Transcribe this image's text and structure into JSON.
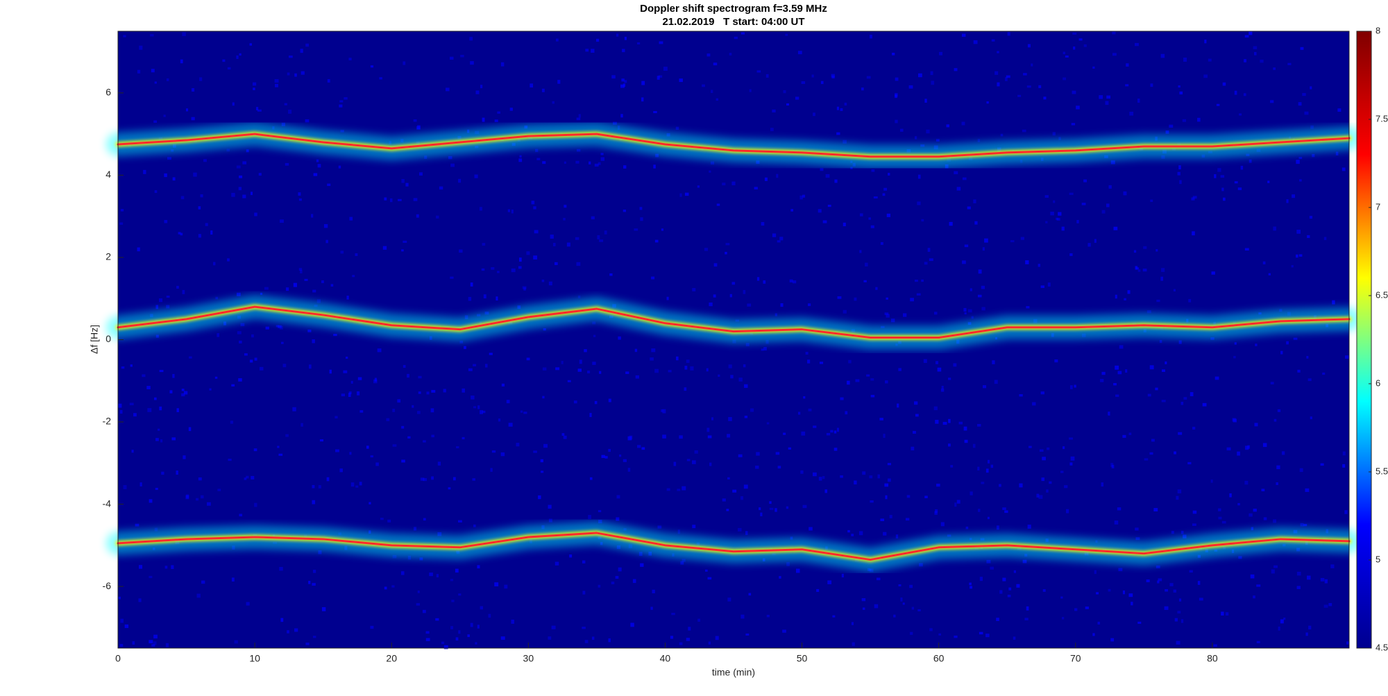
{
  "chart_data": {
    "type": "spectrogram",
    "title": "Doppler shift spectrogram f=3.59 MHz",
    "subtitle": "21.02.2019   T start: 04:00 UT",
    "x_label": "time (min)",
    "y_label": "Δf [Hz]",
    "x": [
      0,
      5,
      10,
      15,
      20,
      25,
      30,
      35,
      40,
      45,
      50,
      55,
      60,
      65,
      70,
      75,
      80,
      85,
      90
    ],
    "series": [
      {
        "color": "#ff2a2a",
        "values": [
          4.75,
          4.85,
          5.0,
          4.8,
          4.65,
          4.8,
          4.95,
          5.0,
          4.75,
          4.6,
          4.55,
          4.45,
          4.45,
          4.55,
          4.6,
          4.7,
          4.7,
          4.8,
          4.9
        ]
      },
      {
        "color": "#ff2a2a",
        "values": [
          0.3,
          0.5,
          0.8,
          0.6,
          0.35,
          0.25,
          0.55,
          0.75,
          0.4,
          0.2,
          0.25,
          0.05,
          0.05,
          0.3,
          0.3,
          0.35,
          0.3,
          0.45,
          0.5
        ]
      },
      {
        "color": "#ff2a2a",
        "values": [
          -4.95,
          -4.85,
          -4.8,
          -4.85,
          -5.0,
          -5.05,
          -4.8,
          -4.7,
          -5.0,
          -5.15,
          -5.1,
          -5.35,
          -5.05,
          -5.0,
          -5.1,
          -5.2,
          -5.0,
          -4.85,
          -4.9
        ]
      }
    ],
    "xlim": [
      0,
      90
    ],
    "xticks": [
      0,
      10,
      20,
      30,
      40,
      50,
      60,
      70,
      80
    ],
    "ylim": [
      -7.5,
      7.5
    ],
    "yticks": [
      -6,
      -4,
      -2,
      0,
      2,
      4,
      6
    ],
    "clim": [
      4.5,
      8
    ],
    "cticks": [
      4.5,
      5,
      5.5,
      6,
      6.5,
      7,
      7.5,
      8
    ],
    "colormap": [
      "#00008f",
      "#0000ff",
      "#00ffff",
      "#ffff00",
      "#ff0000",
      "#800000"
    ]
  }
}
